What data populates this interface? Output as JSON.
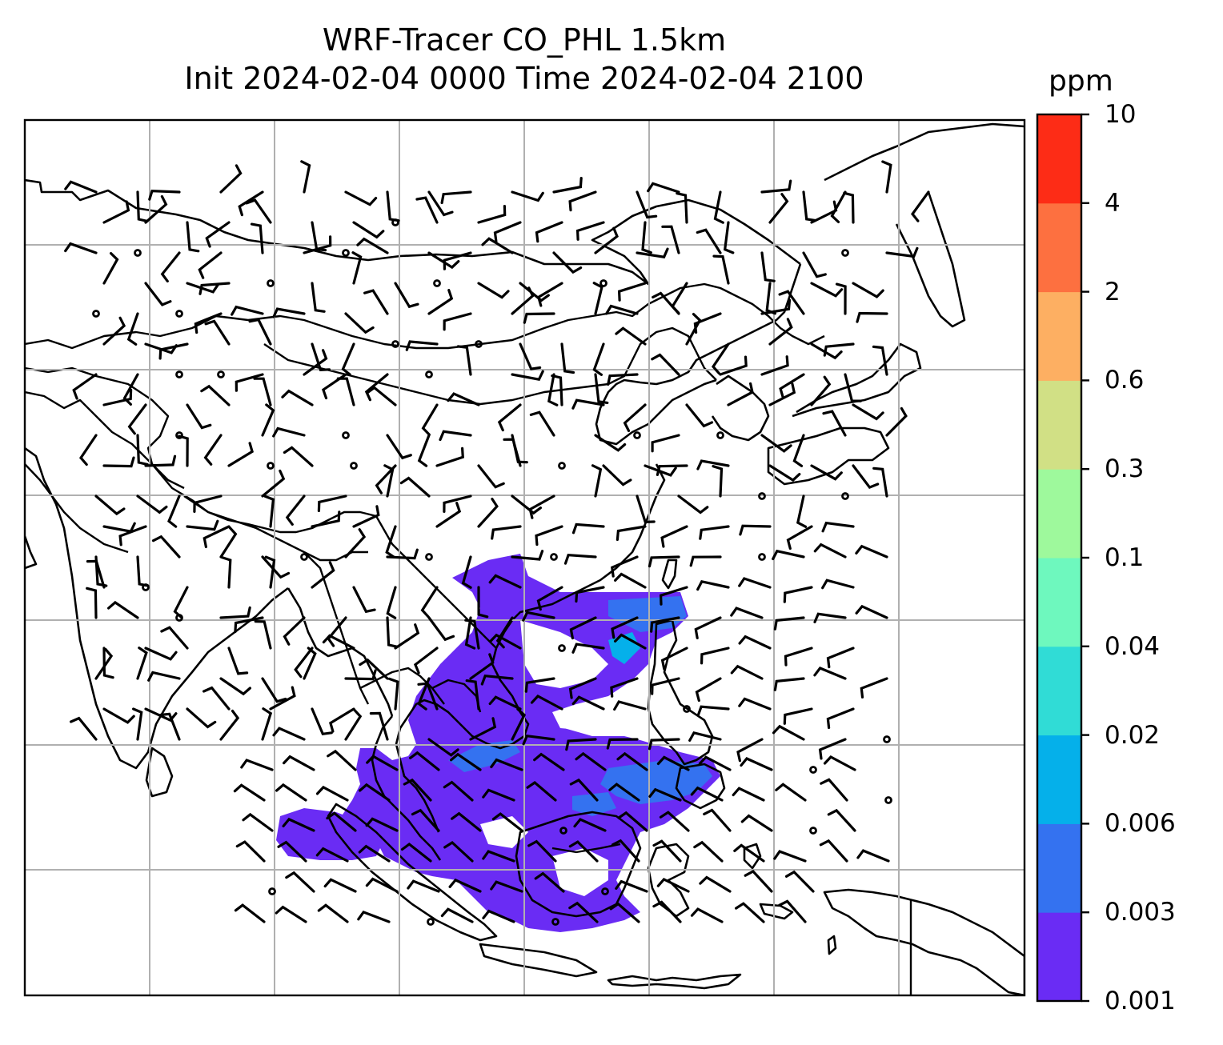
{
  "title": {
    "line1": "WRF-Tracer CO_PHL 1.5km",
    "line2": "Init 2024-02-04 0000 Time 2024-02-04 2100"
  },
  "colorbar": {
    "unit": "ppm",
    "ticks": [
      "0.001",
      "0.003",
      "0.006",
      "0.02",
      "0.04",
      "0.1",
      "0.3",
      "0.6",
      "2",
      "4",
      "10"
    ],
    "colors": [
      "#6a2cf4",
      "#3472f0",
      "#05b0ea",
      "#30dcd6",
      "#6ef8be",
      "#9ef99c",
      "#d1e085",
      "#fdaf62",
      "#fd7040",
      "#fd2c16"
    ]
  },
  "map": {
    "gridlines": true,
    "wind_barbs": true,
    "tracer_color": "#6a2cf4",
    "tracer_secondary_color": "#3472f0",
    "tracer_tertiary_color": "#05b0ea"
  }
}
